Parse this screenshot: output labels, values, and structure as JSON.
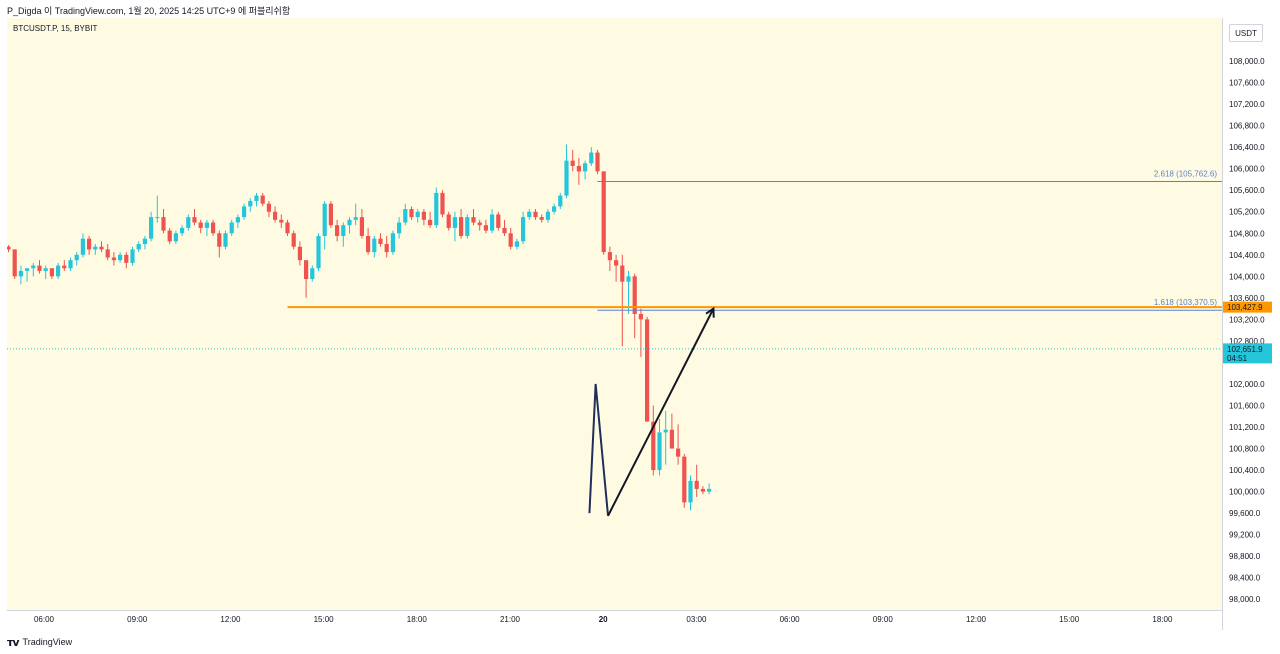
{
  "header": {
    "attribution": "P_Digda 이 TradingView.com, 1월 20, 2025 14:25 UTC+9 에 퍼블리쉬함"
  },
  "symbol": "BTCUSDT.P, 15, BYBIT",
  "currency": "USDT",
  "footer": {
    "brand": "TradingView"
  },
  "colors": {
    "plot_bg": "#fffbe3",
    "up": "#26c6da",
    "down": "#ef5350",
    "orange_line": "#ff9800",
    "fib_line": "#5b7fd6",
    "pattern_navy": "#1f2e5c",
    "arrow": "#131722"
  },
  "chart_data": {
    "type": "candlestick",
    "timeframe": "15",
    "exchange": "BYBIT",
    "ylim": [
      97800,
      108800
    ],
    "y_ticks": [
      "108,000.0",
      "107,600.0",
      "107,200.0",
      "106,800.0",
      "106,400.0",
      "106,000.0",
      "105,600.0",
      "105,200.0",
      "104,800.0",
      "104,400.0",
      "104,000.0",
      "103,600.0",
      "103,200.0",
      "102,800.0",
      "102,000.0",
      "101,600.0",
      "101,200.0",
      "100,800.0",
      "100,400.0",
      "100,000.0",
      "99,600.0",
      "99,200.0",
      "98,800.0",
      "98,400.0",
      "98,000.0"
    ],
    "x_ticks": [
      "06:00",
      "09:00",
      "12:00",
      "15:00",
      "18:00",
      "21:00",
      "20",
      "03:00",
      "06:00",
      "09:00",
      "12:00",
      "15:00",
      "18:00"
    ],
    "price_badges": [
      {
        "label": "103,427.9",
        "value": 103427.9,
        "color": "#ff9800"
      },
      {
        "label": "102,651.9",
        "sub": "04:51",
        "value": 102651.9,
        "color": "#26c6da"
      }
    ],
    "fib_levels": [
      {
        "label": "2.618 (105,762.6)",
        "value": 105762.6,
        "start_index": 95
      },
      {
        "label": "1.618 (103,370.5)",
        "value": 103370.5,
        "start_index": 95
      }
    ],
    "horizontal_line": {
      "value": 103427.9,
      "start_index": 45
    },
    "pattern_line": [
      {
        "i": 93.7,
        "v": 99600
      },
      {
        "i": 94.7,
        "v": 102000
      },
      {
        "i": 96.7,
        "v": 99550
      },
      {
        "i": 113.7,
        "v": 103400
      }
    ],
    "candles": [
      [
        104550,
        104580,
        104450,
        104500
      ],
      [
        104500,
        104500,
        103950,
        104000
      ],
      [
        104000,
        104200,
        103850,
        104100
      ],
      [
        104100,
        104150,
        103900,
        104150
      ],
      [
        104150,
        104250,
        104000,
        104200
      ],
      [
        104200,
        104300,
        104050,
        104100
      ],
      [
        104100,
        104200,
        103950,
        104150
      ],
      [
        104150,
        104150,
        103950,
        104000
      ],
      [
        104000,
        104250,
        103950,
        104200
      ],
      [
        104200,
        104300,
        104100,
        104150
      ],
      [
        104150,
        104350,
        104100,
        104300
      ],
      [
        104300,
        104450,
        104200,
        104400
      ],
      [
        104400,
        104800,
        104350,
        104700
      ],
      [
        104700,
        104750,
        104400,
        104500
      ],
      [
        104500,
        104600,
        104400,
        104550
      ],
      [
        104550,
        104650,
        104450,
        104500
      ],
      [
        104500,
        104600,
        104300,
        104350
      ],
      [
        104350,
        104450,
        104200,
        104300
      ],
      [
        104300,
        104450,
        104250,
        104400
      ],
      [
        104400,
        104450,
        104150,
        104250
      ],
      [
        104250,
        104550,
        104200,
        104500
      ],
      [
        104500,
        104650,
        104450,
        104600
      ],
      [
        104600,
        104750,
        104500,
        104700
      ],
      [
        104700,
        105200,
        104650,
        105100
      ],
      [
        105100,
        105500,
        105000,
        105100
      ],
      [
        105100,
        105250,
        104800,
        104850
      ],
      [
        104850,
        104900,
        104600,
        104650
      ],
      [
        104650,
        104850,
        104600,
        104800
      ],
      [
        104800,
        104950,
        104750,
        104900
      ],
      [
        104900,
        105150,
        104850,
        105100
      ],
      [
        105100,
        105250,
        104950,
        105000
      ],
      [
        105000,
        105050,
        104800,
        104900
      ],
      [
        104900,
        105050,
        104750,
        105000
      ],
      [
        105000,
        105050,
        104750,
        104800
      ],
      [
        104800,
        104850,
        104350,
        104550
      ],
      [
        104550,
        104850,
        104500,
        104800
      ],
      [
        104800,
        105050,
        104750,
        105000
      ],
      [
        105000,
        105150,
        104900,
        105100
      ],
      [
        105100,
        105350,
        105050,
        105300
      ],
      [
        105300,
        105450,
        105200,
        105400
      ],
      [
        105400,
        105550,
        105300,
        105500
      ],
      [
        105500,
        105550,
        105300,
        105350
      ],
      [
        105350,
        105400,
        105100,
        105200
      ],
      [
        105200,
        105300,
        105000,
        105050
      ],
      [
        105050,
        105150,
        104900,
        105000
      ],
      [
        105000,
        105050,
        104750,
        104800
      ],
      [
        104800,
        104850,
        104500,
        104550
      ],
      [
        104550,
        104650,
        104200,
        104300
      ],
      [
        104300,
        104300,
        103600,
        103950
      ],
      [
        103950,
        104200,
        103900,
        104150
      ],
      [
        104150,
        104800,
        104100,
        104750
      ],
      [
        104750,
        105400,
        104500,
        105350
      ],
      [
        105350,
        105400,
        104900,
        104950
      ],
      [
        104950,
        105050,
        104650,
        104750
      ],
      [
        104750,
        105000,
        104550,
        104950
      ],
      [
        104950,
        105100,
        104800,
        105050
      ],
      [
        105050,
        105350,
        104950,
        105100
      ],
      [
        105100,
        105250,
        104700,
        104750
      ],
      [
        104750,
        104900,
        104400,
        104450
      ],
      [
        104450,
        104750,
        104350,
        104700
      ],
      [
        104700,
        104800,
        104550,
        104600
      ],
      [
        104600,
        104750,
        104350,
        104450
      ],
      [
        104450,
        104850,
        104400,
        104800
      ],
      [
        104800,
        105100,
        104700,
        105000
      ],
      [
        105000,
        105350,
        104950,
        105250
      ],
      [
        105250,
        105300,
        105050,
        105100
      ],
      [
        105100,
        105250,
        105000,
        105200
      ],
      [
        105200,
        105250,
        104950,
        105050
      ],
      [
        105050,
        105200,
        104900,
        104950
      ],
      [
        104950,
        105650,
        104900,
        105550
      ],
      [
        105550,
        105600,
        105100,
        105150
      ],
      [
        105150,
        105200,
        104850,
        104900
      ],
      [
        104900,
        105200,
        104650,
        105100
      ],
      [
        105100,
        105250,
        104700,
        104750
      ],
      [
        104750,
        105150,
        104700,
        105100
      ],
      [
        105100,
        105250,
        104950,
        105000
      ],
      [
        105000,
        105050,
        104850,
        104950
      ],
      [
        104950,
        105050,
        104800,
        104850
      ],
      [
        104850,
        105250,
        104800,
        105150
      ],
      [
        105150,
        105200,
        104850,
        104900
      ],
      [
        104900,
        105050,
        104750,
        104800
      ],
      [
        104800,
        104900,
        104500,
        104550
      ],
      [
        104550,
        104700,
        104500,
        104650
      ],
      [
        104650,
        105200,
        104600,
        105100
      ],
      [
        105100,
        105250,
        105050,
        105200
      ],
      [
        105200,
        105250,
        105050,
        105100
      ],
      [
        105100,
        105150,
        105000,
        105050
      ],
      [
        105050,
        105250,
        105000,
        105200
      ],
      [
        105200,
        105350,
        105150,
        105300
      ],
      [
        105300,
        105550,
        105250,
        105500
      ],
      [
        105500,
        106450,
        105450,
        106150
      ],
      [
        106150,
        106350,
        105950,
        106050
      ],
      [
        106050,
        106200,
        105700,
        105950
      ],
      [
        105950,
        106150,
        105800,
        106100
      ],
      [
        106100,
        106400,
        106050,
        106300
      ],
      [
        106300,
        106350,
        105900,
        105950
      ],
      [
        105950,
        105950,
        104400,
        104450
      ],
      [
        104450,
        104550,
        104100,
        104300
      ],
      [
        104300,
        104400,
        103900,
        104200
      ],
      [
        104200,
        104400,
        102700,
        103900
      ],
      [
        103900,
        104100,
        103300,
        104000
      ],
      [
        104000,
        104050,
        102850,
        103300
      ],
      [
        103300,
        103400,
        102500,
        103200
      ],
      [
        103200,
        103250,
        101300,
        101300
      ],
      [
        101300,
        101600,
        100300,
        100400
      ],
      [
        100400,
        101350,
        100300,
        101100
      ],
      [
        101100,
        101500,
        100500,
        101150
      ],
      [
        101150,
        101450,
        100800,
        100800
      ],
      [
        100800,
        101250,
        100500,
        100650
      ],
      [
        100650,
        100700,
        99700,
        99800
      ],
      [
        99800,
        100300,
        99650,
        100200
      ],
      [
        100200,
        100500,
        99900,
        100050
      ],
      [
        100050,
        100100,
        99950,
        100000
      ],
      [
        100000,
        100150,
        99950,
        100050
      ]
    ]
  }
}
